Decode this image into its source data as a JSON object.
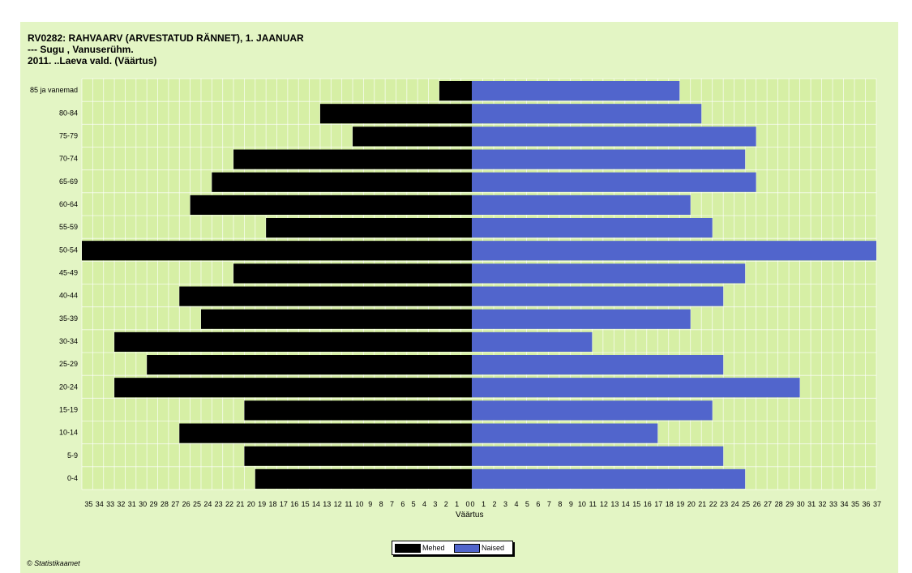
{
  "header": {
    "title_line1": "RV0282: RAHVAARV (ARVESTATUD RÄNNET), 1. JAANUAR",
    "title_line2": "--- Sugu , Vanuserühm.",
    "title_line3": "2011. ..Laeva vald. (Väärtus)"
  },
  "chart_data": {
    "type": "bar",
    "orientation": "horizontal-population-pyramid",
    "categories": [
      "85 ja vanemad",
      "80-84",
      "75-79",
      "70-74",
      "65-69",
      "60-64",
      "55-59",
      "50-54",
      "45-49",
      "40-44",
      "35-39",
      "30-34",
      "25-29",
      "20-24",
      "15-19",
      "10-14",
      "5-9",
      "0-4"
    ],
    "series": [
      {
        "name": "Mehed",
        "color": "#000000",
        "values": [
          3,
          14,
          11,
          22,
          24,
          26,
          19,
          36,
          22,
          27,
          25,
          33,
          30,
          33,
          21,
          27,
          21,
          20
        ]
      },
      {
        "name": "Naised",
        "color": "#5165cc",
        "values": [
          19,
          21,
          26,
          25,
          26,
          20,
          22,
          37,
          25,
          23,
          20,
          11,
          23,
          30,
          22,
          17,
          23,
          25
        ]
      }
    ],
    "xlabel": "Väärtus",
    "x_left_ticks": [
      35,
      34,
      33,
      32,
      31,
      30,
      29,
      28,
      27,
      26,
      25,
      24,
      23,
      22,
      21,
      20,
      19,
      18,
      17,
      16,
      15,
      14,
      13,
      12,
      11,
      10,
      9,
      8,
      7,
      6,
      5,
      4,
      3,
      2,
      1,
      0
    ],
    "x_right_ticks": [
      0,
      1,
      2,
      3,
      4,
      5,
      6,
      7,
      8,
      9,
      10,
      11,
      12,
      13,
      14,
      15,
      16,
      17,
      18,
      19,
      20,
      21,
      22,
      23,
      24,
      25,
      26,
      27,
      28,
      29,
      30,
      31,
      32,
      33,
      34,
      35,
      36,
      37
    ],
    "grid": true,
    "legend_position": "bottom-center",
    "plot_background": "#d6efa5",
    "page_background": "#e3f5c4"
  },
  "legend": {
    "men_label": "Mehed",
    "women_label": "Naised"
  },
  "footer": {
    "credit": "© Statistikaamet"
  }
}
